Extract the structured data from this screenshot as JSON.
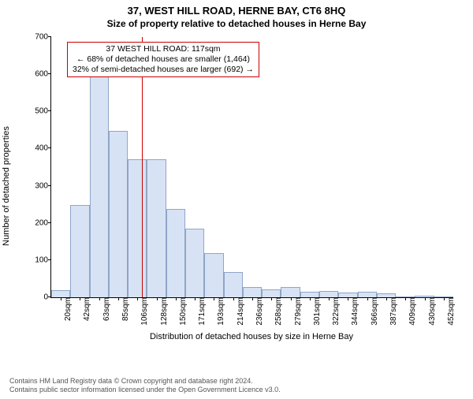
{
  "title": "37, WEST HILL ROAD, HERNE BAY, CT6 8HQ",
  "subtitle": "Size of property relative to detached houses in Herne Bay",
  "ylabel": "Number of detached properties",
  "xlabel": "Distribution of detached houses by size in Herne Bay",
  "chart": {
    "type": "histogram",
    "ylim": [
      0,
      700
    ],
    "ytick_step": 100,
    "yticks": [
      0,
      100,
      200,
      300,
      400,
      500,
      600,
      700
    ],
    "xticks": [
      "20sqm",
      "42sqm",
      "63sqm",
      "85sqm",
      "106sqm",
      "128sqm",
      "150sqm",
      "171sqm",
      "193sqm",
      "214sqm",
      "236sqm",
      "258sqm",
      "279sqm",
      "301sqm",
      "322sqm",
      "344sqm",
      "366sqm",
      "387sqm",
      "409sqm",
      "430sqm",
      "452sqm"
    ],
    "values": [
      20,
      248,
      595,
      448,
      372,
      372,
      238,
      185,
      118,
      68,
      28,
      22,
      28,
      15,
      18,
      12,
      15,
      10,
      0,
      5,
      0
    ],
    "bar_fill": "#d7e3f4",
    "bar_stroke": "#8fa5c7",
    "background": "#ffffff",
    "axis_color": "#000000"
  },
  "marker": {
    "value_sqm": 117,
    "line_color": "#cc0000",
    "annotation_border": "#cc0000",
    "line1": "37 WEST HILL ROAD: 117sqm",
    "line2": "← 68% of detached houses are smaller (1,464)",
    "line3": "32% of semi-detached houses are larger (692) →"
  },
  "footer": {
    "line1": "Contains HM Land Registry data © Crown copyright and database right 2024.",
    "line2": "Contains public sector information licensed under the Open Government Licence v3.0."
  }
}
